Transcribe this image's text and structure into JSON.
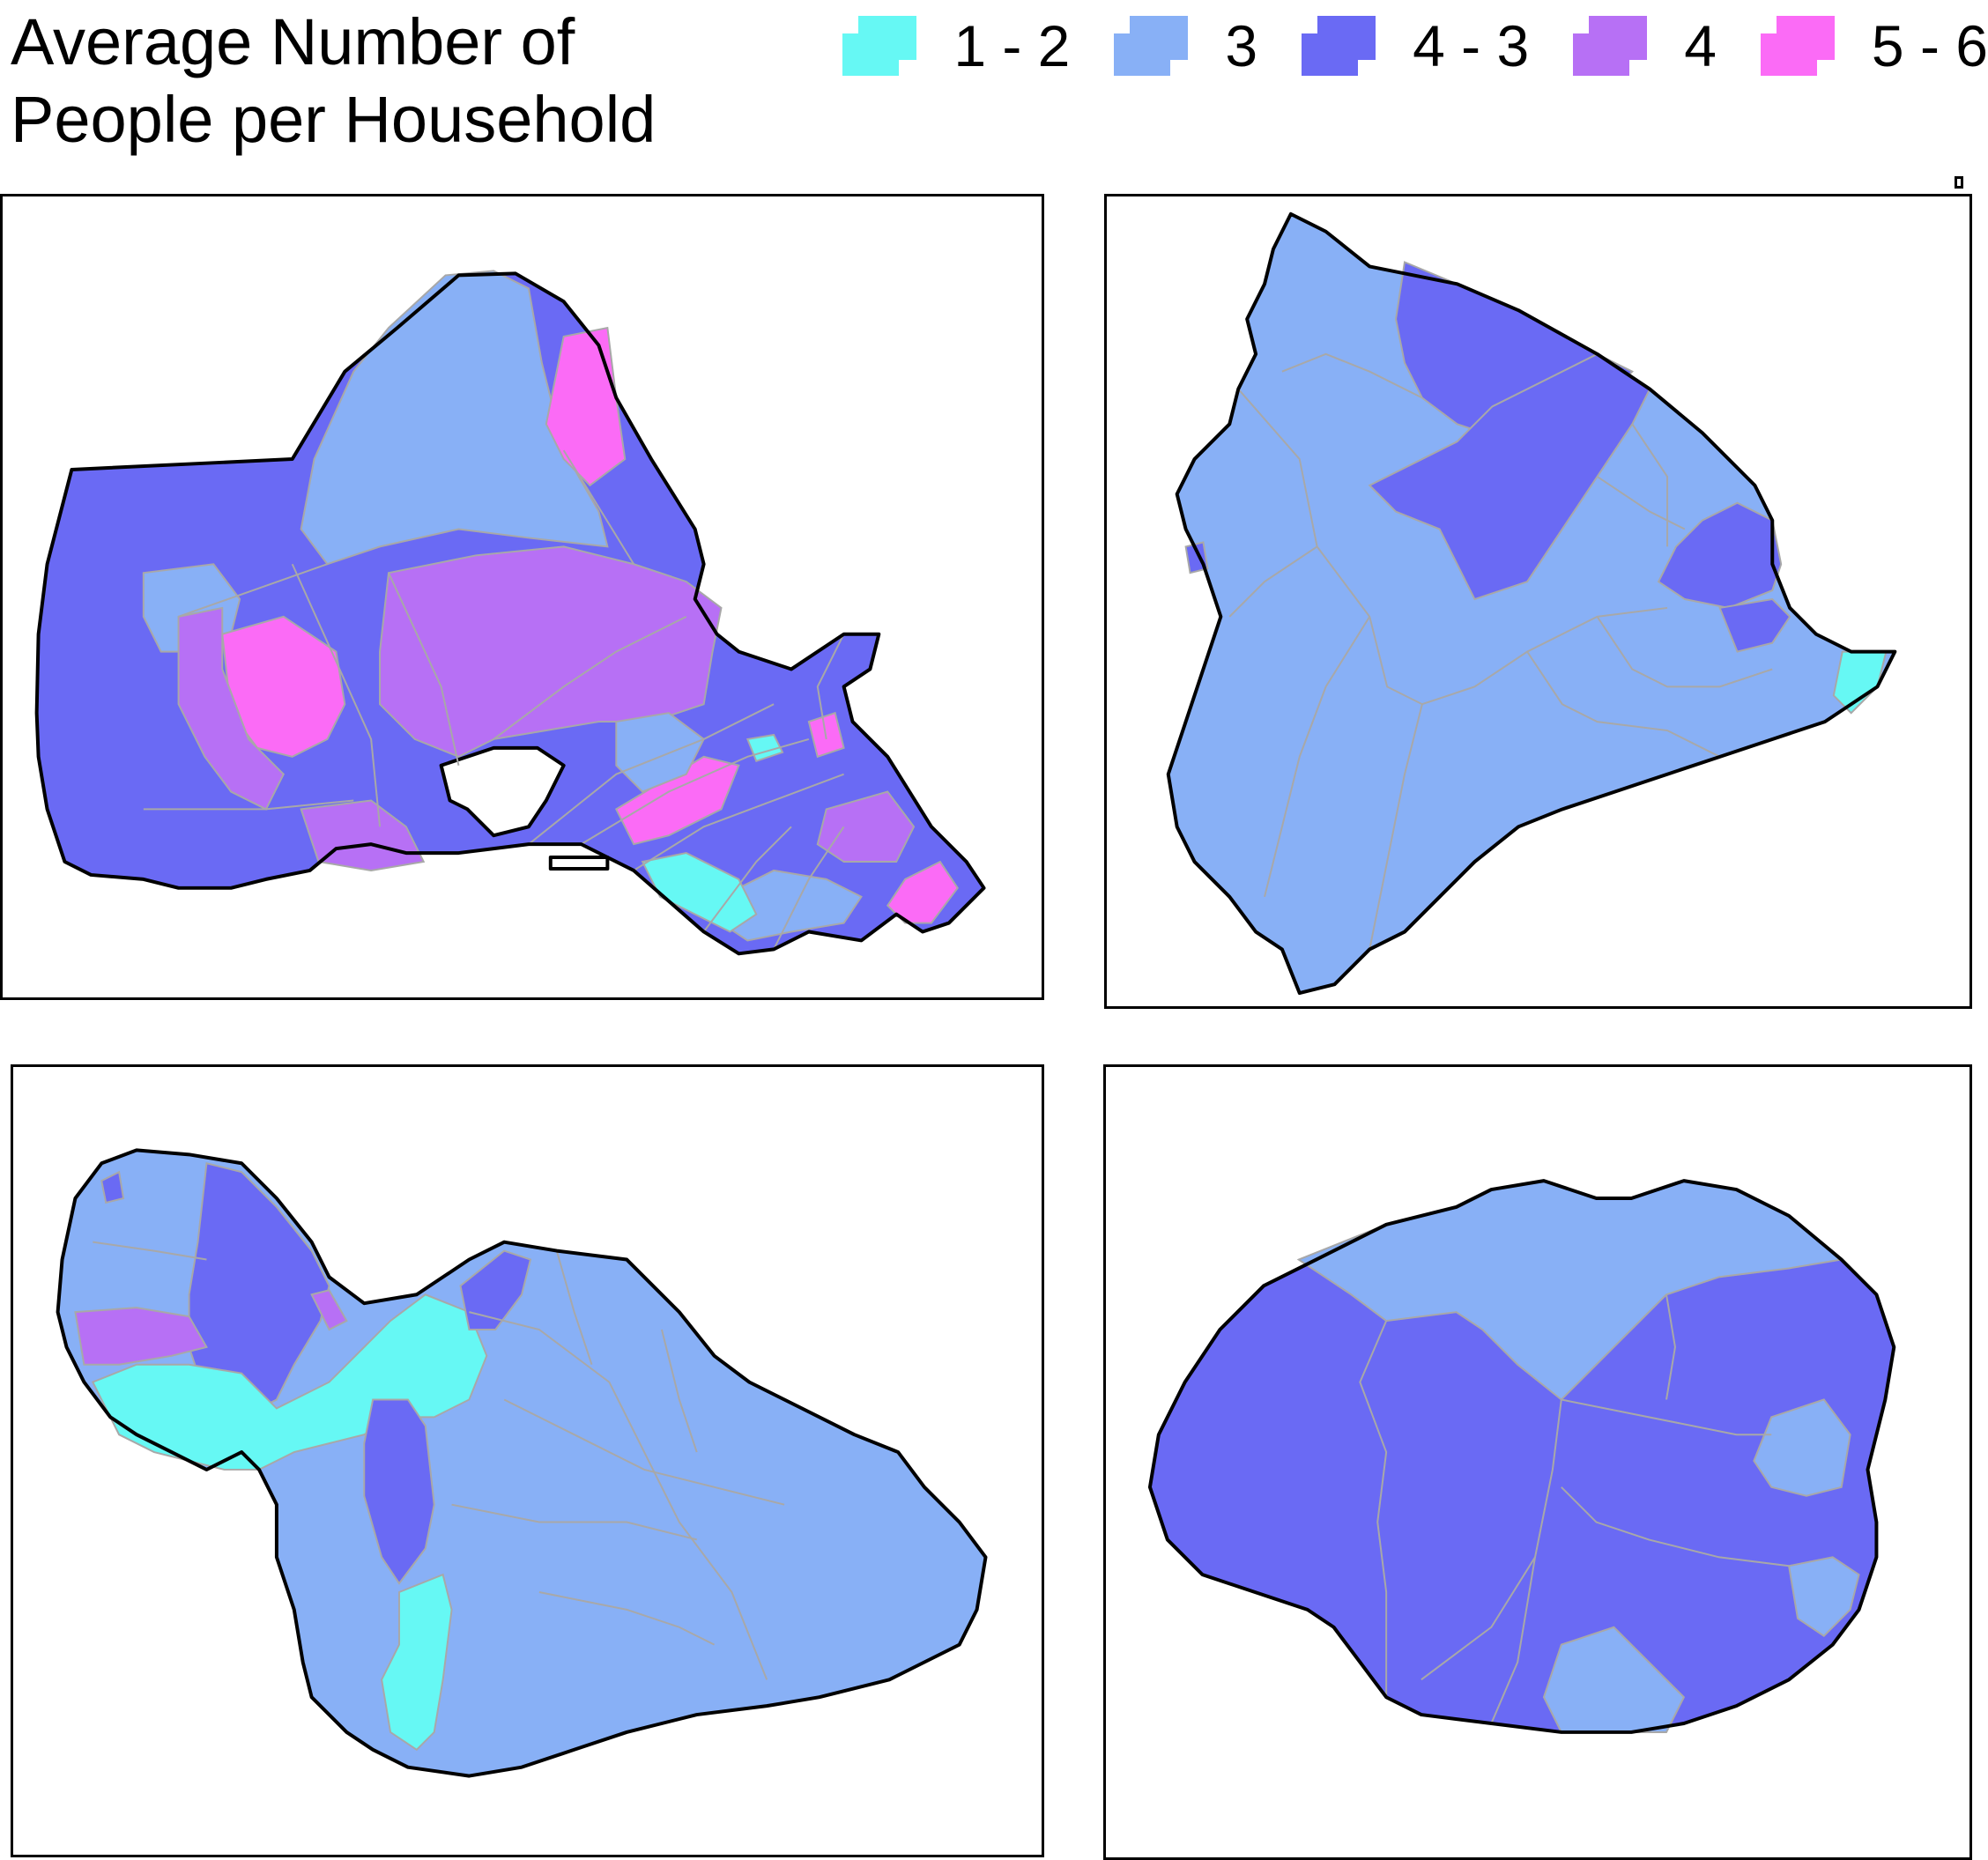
{
  "title": {
    "line1": "Average Number of",
    "line2": "People per Household"
  },
  "legend": [
    {
      "label": "1 - 2",
      "color": "#66f8f4"
    },
    {
      "label": "3",
      "color": "#88b0f6"
    },
    {
      "label": "4 - 3",
      "color": "#6a6af4"
    },
    {
      "label": "4",
      "color": "#b770f5"
    },
    {
      "label": "5 - 6",
      "color": "#fb6bf6"
    }
  ],
  "colors": {
    "c12": "#66f8f4",
    "c3": "#88b0f6",
    "c43": "#6a6af4",
    "c4": "#b770f5",
    "c56": "#fb6bf6",
    "boundary": "#a8a8a8",
    "coast": "#000000"
  },
  "panels": [
    {
      "island": "oahu"
    },
    {
      "island": "hawaii"
    },
    {
      "island": "maui"
    },
    {
      "island": "kauai"
    }
  ]
}
